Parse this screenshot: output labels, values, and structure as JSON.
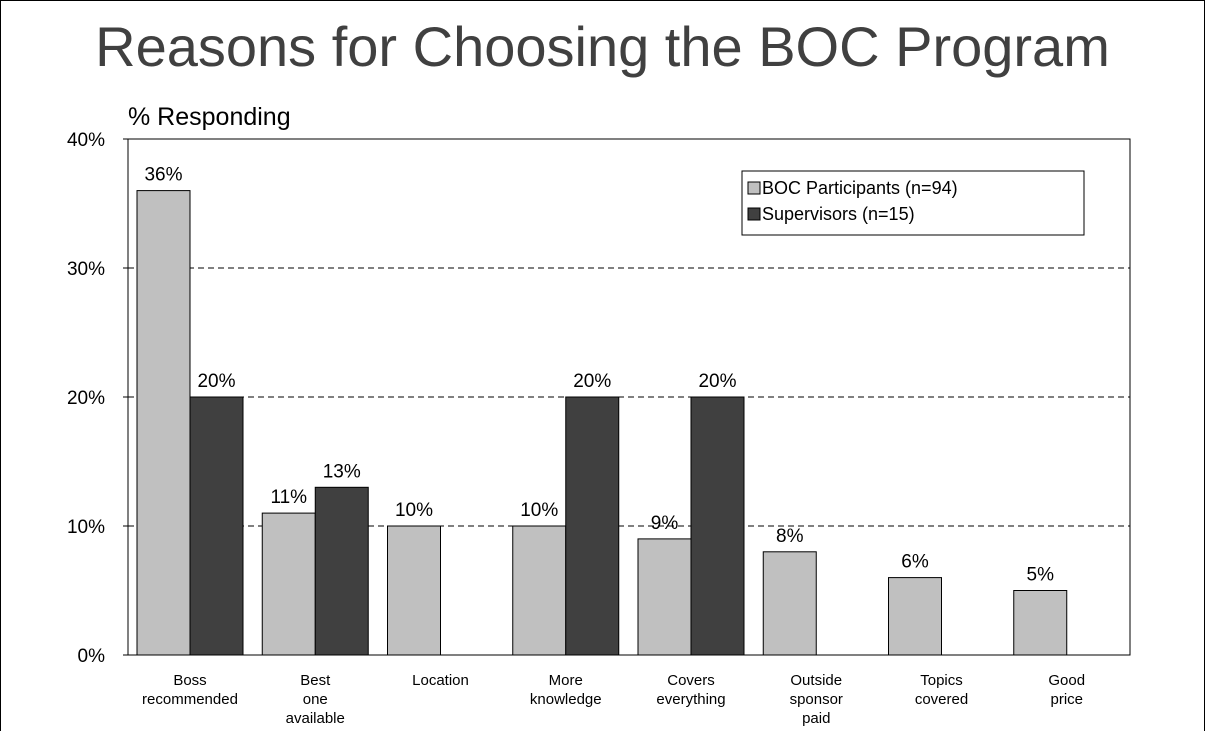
{
  "page": {
    "title": "Reasons for Choosing the BOC Program"
  },
  "chart_data": {
    "type": "bar",
    "title": "Reasons for Choosing the BOC Program",
    "ylabel": "% Responding",
    "xlabel": "",
    "ylim": [
      0,
      40
    ],
    "yticks": [
      "0%",
      "10%",
      "20%",
      "30%",
      "40%"
    ],
    "grid": "dashed horizontal at 10%, 20%, 30%",
    "legend_position": "top-right",
    "categories": [
      [
        "Boss",
        "recommended"
      ],
      [
        "Best",
        "one",
        "available"
      ],
      [
        "Location"
      ],
      [
        "More",
        "knowledge"
      ],
      [
        "Covers",
        "everything"
      ],
      [
        "Outside",
        "sponsor",
        "paid"
      ],
      [
        "Topics",
        "covered"
      ],
      [
        "Good",
        "price"
      ]
    ],
    "series": [
      {
        "name": "BOC Participants (n=94)",
        "color": "#c0c0c0",
        "values": [
          36,
          11,
          10,
          10,
          9,
          8,
          6,
          5
        ],
        "labels": [
          "36%",
          "11%",
          "10%",
          "10%",
          "9%",
          "8%",
          "6%",
          "5%"
        ]
      },
      {
        "name": "Supervisors (n=15)",
        "color": "#404040",
        "values": [
          20,
          13,
          null,
          20,
          20,
          null,
          null,
          null
        ],
        "labels": [
          "20%",
          "13%",
          null,
          "20%",
          "20%",
          null,
          null,
          null
        ]
      }
    ]
  }
}
